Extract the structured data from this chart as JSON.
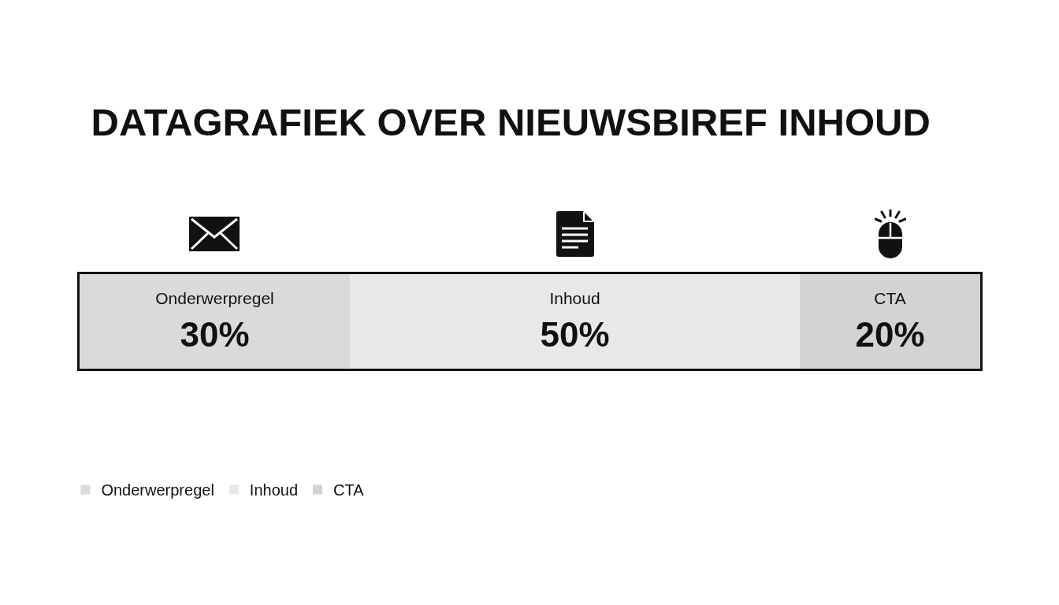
{
  "chart_data": {
    "type": "bar",
    "title": "DATAGRAFIEK OVER NIEUWSBIREF INHOUD",
    "orientation": "horizontal",
    "stacked": true,
    "categories": [
      null
    ],
    "xlim": [
      0,
      100
    ],
    "legend": "bottom left",
    "series": [
      {
        "name": "Onderwerpregel",
        "color": "#dadada",
        "values": [
          30
        ],
        "value_labels": [
          "30%"
        ]
      },
      {
        "name": "Inhoud",
        "color": "#e8e8e8",
        "values": [
          50
        ],
        "value_labels": [
          "50%"
        ]
      },
      {
        "name": "CTA",
        "color": "#d3d3d3",
        "values": [
          20
        ],
        "value_labels": [
          "20%"
        ]
      }
    ]
  }
}
